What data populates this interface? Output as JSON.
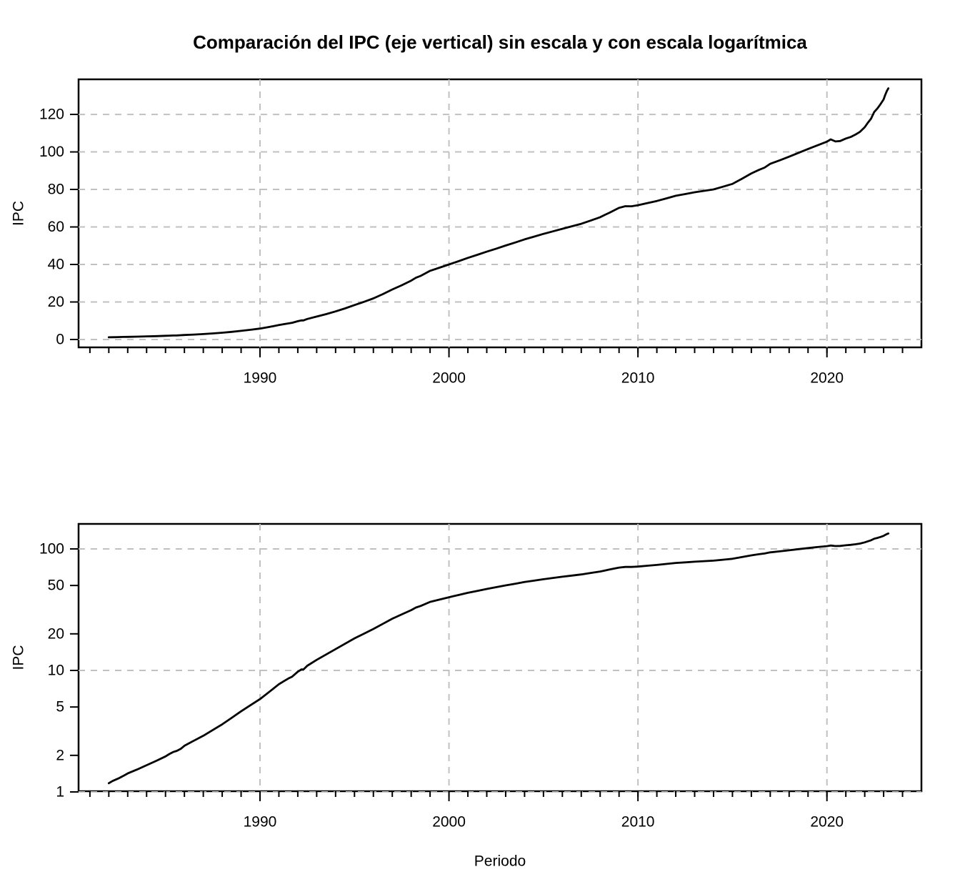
{
  "title": "Comparación del IPC (eje vertical) sin escala y con escala logarítmica",
  "colors": {
    "line": "#000000",
    "grid": "#C1C1C1",
    "box": "#000000",
    "text": "#000000",
    "background": "#FFFFFF"
  },
  "ipc_series": {
    "name": "IPC",
    "points": [
      [
        1982.0,
        1.18
      ],
      [
        1982.2,
        1.23
      ],
      [
        1982.5,
        1.29
      ],
      [
        1982.75,
        1.35
      ],
      [
        1983.0,
        1.42
      ],
      [
        1983.5,
        1.53
      ],
      [
        1984.0,
        1.66
      ],
      [
        1984.5,
        1.8
      ],
      [
        1985.0,
        1.96
      ],
      [
        1985.2,
        2.05
      ],
      [
        1985.4,
        2.13
      ],
      [
        1985.6,
        2.18
      ],
      [
        1985.8,
        2.26
      ],
      [
        1986.0,
        2.4
      ],
      [
        1986.5,
        2.64
      ],
      [
        1987.0,
        2.9
      ],
      [
        1987.5,
        3.23
      ],
      [
        1988.0,
        3.6
      ],
      [
        1988.5,
        4.07
      ],
      [
        1989.0,
        4.61
      ],
      [
        1989.5,
        5.18
      ],
      [
        1990.0,
        5.81
      ],
      [
        1990.5,
        6.68
      ],
      [
        1991.0,
        7.7
      ],
      [
        1991.3,
        8.23
      ],
      [
        1991.5,
        8.58
      ],
      [
        1991.7,
        8.89
      ],
      [
        1992.0,
        9.76
      ],
      [
        1992.2,
        10.21
      ],
      [
        1992.3,
        10.16
      ],
      [
        1992.5,
        10.92
      ],
      [
        1993.0,
        12.21
      ],
      [
        1993.5,
        13.52
      ],
      [
        1994.0,
        14.97
      ],
      [
        1994.5,
        16.58
      ],
      [
        1995.0,
        18.36
      ],
      [
        1995.5,
        20.06
      ],
      [
        1996.0,
        21.92
      ],
      [
        1996.5,
        24.18
      ],
      [
        1997.0,
        26.67
      ],
      [
        1997.5,
        28.93
      ],
      [
        1998.0,
        31.38
      ],
      [
        1998.25,
        32.92
      ],
      [
        1998.5,
        33.91
      ],
      [
        1999.0,
        36.63
      ],
      [
        1999.5,
        38.29
      ],
      [
        2000.0,
        40.01
      ],
      [
        2000.5,
        41.72
      ],
      [
        2001.0,
        43.51
      ],
      [
        2001.5,
        45.14
      ],
      [
        2002.0,
        46.84
      ],
      [
        2002.5,
        48.44
      ],
      [
        2003.0,
        50.12
      ],
      [
        2003.5,
        51.71
      ],
      [
        2004.0,
        53.37
      ],
      [
        2004.5,
        54.81
      ],
      [
        2005.0,
        56.31
      ],
      [
        2005.5,
        57.65
      ],
      [
        2006.0,
        59.03
      ],
      [
        2006.5,
        60.34
      ],
      [
        2007.0,
        61.68
      ],
      [
        2007.5,
        63.4
      ],
      [
        2008.0,
        65.19
      ],
      [
        2008.25,
        66.45
      ],
      [
        2008.5,
        67.64
      ],
      [
        2009.0,
        70.19
      ],
      [
        2009.33,
        71.07
      ],
      [
        2009.66,
        71.02
      ],
      [
        2010.0,
        71.59
      ],
      [
        2010.5,
        72.72
      ],
      [
        2011.0,
        73.86
      ],
      [
        2011.5,
        75.22
      ],
      [
        2012.0,
        76.62
      ],
      [
        2012.5,
        77.54
      ],
      [
        2013.0,
        78.49
      ],
      [
        2013.5,
        79.25
      ],
      [
        2014.0,
        80.01
      ],
      [
        2014.5,
        81.45
      ],
      [
        2015.0,
        82.94
      ],
      [
        2015.5,
        85.68
      ],
      [
        2016.0,
        88.55
      ],
      [
        2016.4,
        90.42
      ],
      [
        2016.7,
        91.64
      ],
      [
        2017.0,
        93.64
      ],
      [
        2017.5,
        95.53
      ],
      [
        2018.0,
        97.48
      ],
      [
        2018.5,
        99.52
      ],
      [
        2019.0,
        101.6
      ],
      [
        2019.5,
        103.51
      ],
      [
        2020.0,
        105.46
      ],
      [
        2020.2,
        106.7
      ],
      [
        2020.45,
        105.6
      ],
      [
        2020.7,
        105.8
      ],
      [
        2021.0,
        107.16
      ],
      [
        2021.25,
        107.95
      ],
      [
        2021.5,
        109.2
      ],
      [
        2021.75,
        110.72
      ],
      [
        2022.0,
        113.18
      ],
      [
        2022.17,
        115.6
      ],
      [
        2022.33,
        117.7
      ],
      [
        2022.5,
        121.3
      ],
      [
        2022.67,
        123.2
      ],
      [
        2022.83,
        125.4
      ],
      [
        2023.0,
        128.04
      ],
      [
        2023.08,
        130.3
      ],
      [
        2023.17,
        132.47
      ],
      [
        2023.25,
        133.9
      ]
    ]
  },
  "chart_data": [
    {
      "type": "line",
      "panel": "linear",
      "title": "",
      "xlabel": "",
      "ylabel": "IPC",
      "yscale": "linear",
      "xlim": [
        1980.4,
        2025.0
      ],
      "ylim": [
        -4.2,
        138.7
      ],
      "yticks": [
        0,
        20,
        40,
        60,
        80,
        100,
        120
      ],
      "xticks_major": [
        1990,
        2000,
        2010,
        2020
      ],
      "xticks_minor": {
        "from": 1981,
        "to": 2024,
        "step": 1
      },
      "grid_h": [
        0,
        20,
        40,
        60,
        80,
        100,
        120
      ],
      "grid_v": [
        1990,
        2000,
        2010,
        2020
      ],
      "grid": "dashed",
      "legend": "none",
      "series": "ipc_series"
    },
    {
      "type": "line",
      "panel": "log",
      "title": "",
      "xlabel": "Periodo",
      "ylabel": "IPC",
      "yscale": "log",
      "xlim": [
        1980.4,
        2025.0
      ],
      "ylim": [
        1.0136,
        160.6
      ],
      "yticks": [
        1,
        2,
        5,
        10,
        20,
        50,
        100
      ],
      "xticks_major": [
        1990,
        2000,
        2010,
        2020
      ],
      "xticks_minor": {
        "from": 1981,
        "to": 2024,
        "step": 1
      },
      "grid_h": [
        1,
        10,
        100
      ],
      "grid_v": [
        1990,
        2000,
        2010,
        2020
      ],
      "grid": "dashed",
      "legend": "none",
      "series": "ipc_series"
    }
  ]
}
